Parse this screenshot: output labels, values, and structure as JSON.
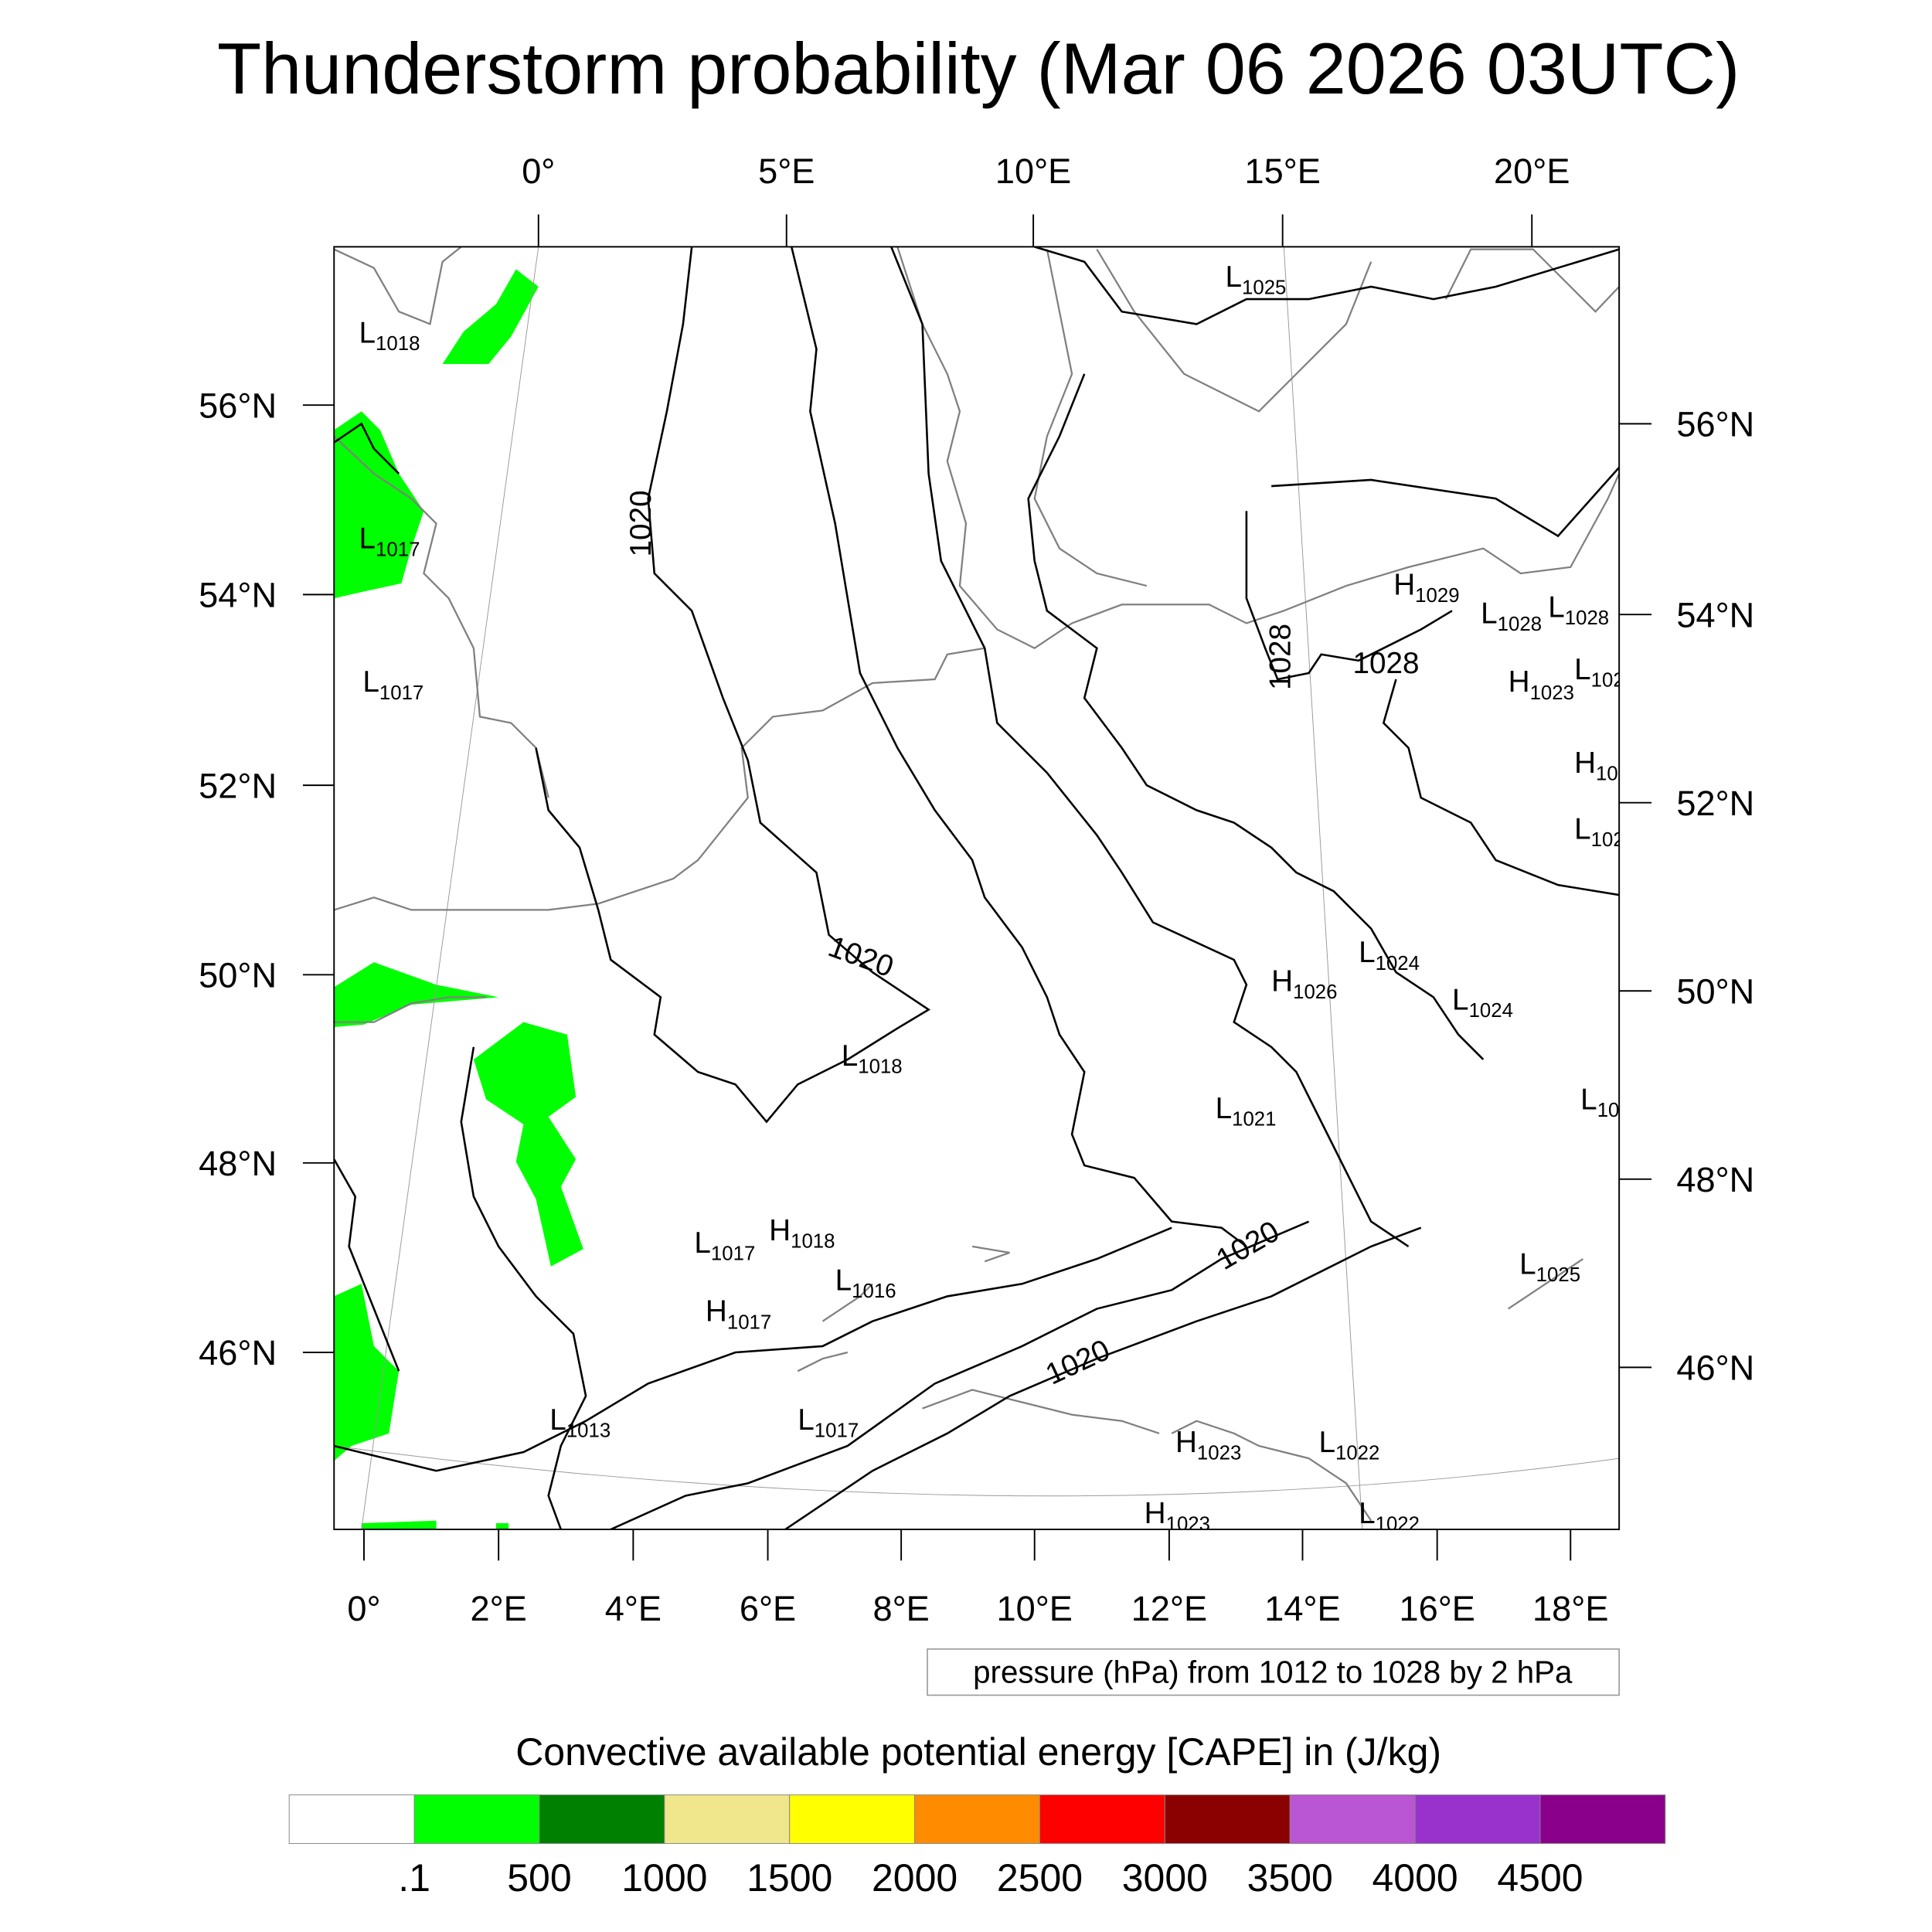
{
  "title": "Thunderstorm probability (Mar 06 2026 03UTC)",
  "axes": {
    "top_lon": [
      "0°",
      "5°E",
      "10°E",
      "15°E",
      "20°E"
    ],
    "bottom_lon": [
      "0°",
      "2°E",
      "4°E",
      "6°E",
      "8°E",
      "10°E",
      "12°E",
      "14°E",
      "16°E",
      "18°E"
    ],
    "left_lat": [
      "56°N",
      "54°N",
      "52°N",
      "50°N",
      "48°N",
      "46°N"
    ],
    "right_lat": [
      "56°N",
      "54°N",
      "52°N",
      "50°N",
      "48°N",
      "46°N"
    ]
  },
  "pressure_legend": "pressure (hPa) from 1012 to 1028 by 2 hPa",
  "colorbar": {
    "title": "Convective available potential energy [CAPE] in (J/kg)",
    "colors": [
      "#ffffff",
      "#00ff00",
      "#008000",
      "#f0e68c",
      "#ffff00",
      "#ff8c00",
      "#ff0000",
      "#8b0000",
      "#ba55d3",
      "#9932cc",
      "#8b008b"
    ],
    "labels": [
      ".1",
      "500",
      "1000",
      "1500",
      "2000",
      "2500",
      "3000",
      "3500",
      "4000",
      "4500"
    ]
  },
  "pressure_centers": [
    {
      "type": "L",
      "value": "1018"
    },
    {
      "type": "L",
      "value": "1017"
    },
    {
      "type": "L",
      "value": "1017"
    },
    {
      "type": "L",
      "value": "1025"
    },
    {
      "type": "H",
      "value": "1029"
    },
    {
      "type": "L",
      "value": "1028"
    },
    {
      "type": "L",
      "value": "1028"
    },
    {
      "type": "H",
      "value": "1023"
    },
    {
      "type": "L",
      "value": "102"
    },
    {
      "type": "H",
      "value": "10"
    },
    {
      "type": "L",
      "value": "102"
    },
    {
      "type": "L",
      "value": "1024"
    },
    {
      "type": "H",
      "value": "1026"
    },
    {
      "type": "L",
      "value": "1024"
    },
    {
      "type": "L",
      "value": "1018"
    },
    {
      "type": "L",
      "value": "1021"
    },
    {
      "type": "L",
      "value": "10"
    },
    {
      "type": "L",
      "value": "1017"
    },
    {
      "type": "H",
      "value": "1018"
    },
    {
      "type": "L",
      "value": "1016"
    },
    {
      "type": "H",
      "value": "1017"
    },
    {
      "type": "L",
      "value": "1013"
    },
    {
      "type": "L",
      "value": "1017"
    },
    {
      "type": "H",
      "value": "1023"
    },
    {
      "type": "L",
      "value": "1022"
    },
    {
      "type": "H",
      "value": "1023"
    },
    {
      "type": "L",
      "value": "1022"
    },
    {
      "type": "L",
      "value": "1025"
    }
  ],
  "contour_labels": [
    "1020",
    "1020",
    "1020",
    "1020",
    "1028",
    "1028"
  ]
}
